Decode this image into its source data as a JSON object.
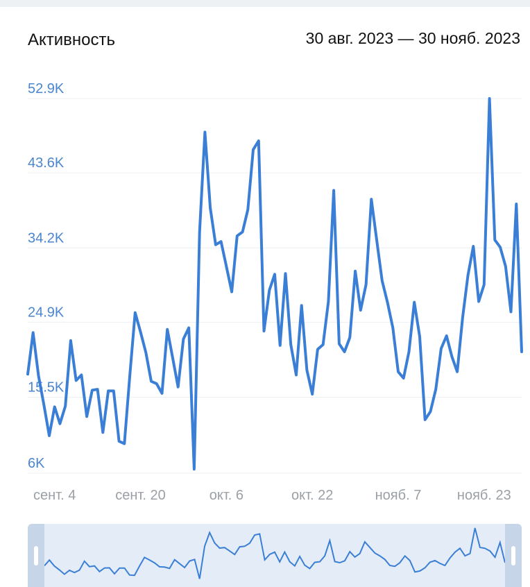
{
  "header": {
    "title": "Активность",
    "date_range": "30 авг. 2023 — 30 нояб. 2023"
  },
  "colors": {
    "line": "#3a7fd5",
    "axis_label": "#4a86cf",
    "x_label": "#9aa0a6",
    "grid": "#eceff2",
    "navigator_bg": "#e4edf7"
  },
  "chart_data": {
    "type": "line",
    "title": "Активность",
    "x_tick_labels": [
      "сент. 4",
      "сент. 20",
      "окт. 6",
      "окт. 22",
      "нояб. 7",
      "нояб. 23"
    ],
    "x_tick_indexes": [
      5,
      21,
      37,
      53,
      69,
      85
    ],
    "y_tick_labels": [
      "6K",
      "15.5K",
      "24.9K",
      "34.2K",
      "43.6K",
      "52.9K"
    ],
    "y_tick_values": [
      6000,
      15500,
      24900,
      34200,
      43600,
      52900
    ],
    "ylim": [
      6000,
      52900
    ],
    "grid": true,
    "series": [
      {
        "values": [
          18400,
          23600,
          18200,
          14600,
          10700,
          14300,
          12200,
          14400,
          22600,
          17600,
          18300,
          13100,
          16400,
          16500,
          11100,
          16300,
          16300,
          10000,
          9700,
          18100,
          26100,
          23700,
          21100,
          17500,
          17200,
          16000,
          24000,
          20400,
          16800,
          22800,
          24200,
          6500,
          36200,
          48700,
          39200,
          34600,
          35000,
          31900,
          28700,
          35700,
          36200,
          39000,
          46500,
          47600,
          23800,
          28900,
          30900,
          22000,
          31000,
          22100,
          18300,
          27000,
          18900,
          15900,
          21500,
          22100,
          27500,
          41400,
          22200,
          21200,
          23000,
          31300,
          26400,
          29600,
          40300,
          35200,
          30100,
          27400,
          24200,
          18700,
          17900,
          21200,
          27400,
          23100,
          12700,
          13700,
          16500,
          21600,
          23200,
          20600,
          18700,
          25500,
          30800,
          34400,
          27500,
          29600,
          52900,
          35200,
          34300,
          31900,
          26200,
          39700,
          21200
        ]
      }
    ]
  }
}
